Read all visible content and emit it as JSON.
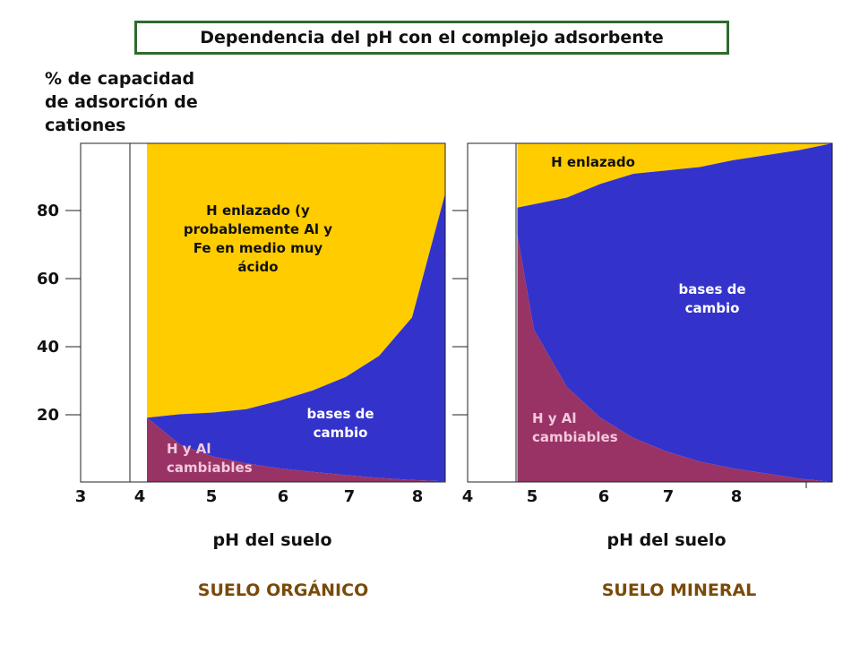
{
  "title": "Dependencia del pH con el complejo adsorbente",
  "y_axis_label": "% de capacidad\nde adsorción de\ncationes",
  "colors": {
    "h_enlazado": "#ffcc00",
    "bases_de_cambio": "#3333cc",
    "h_y_al": "#993366",
    "title_border": "#2e6b2e",
    "footer_text": "#7a4a0a"
  },
  "chart_data": [
    {
      "type": "area",
      "title": "SUELO ORGÁNICO",
      "xlabel": "pH del suelo",
      "ylabel": "% de capacidad de adsorción de cationes",
      "x_ticks": [
        "3",
        "4",
        "5",
        "6",
        "7",
        "8"
      ],
      "y_ticks": [
        "20",
        "40",
        "60",
        "80"
      ],
      "xlim": [
        3,
        8.5
      ],
      "ylim": [
        0,
        100
      ],
      "series": [
        {
          "name": "H y Al cambiables",
          "color_key": "h_y_al",
          "x": [
            4,
            4.5,
            5,
            5.5,
            6,
            6.5,
            7,
            7.5,
            8,
            8.5
          ],
          "y": [
            19,
            11,
            7.5,
            5.5,
            4,
            3,
            2,
            1.2,
            0.6,
            0.2
          ]
        },
        {
          "name": "bases de cambio",
          "color_key": "bases_de_cambio",
          "x": [
            4,
            4.5,
            5,
            5.5,
            6,
            6.5,
            7,
            7.5,
            8,
            8.5
          ],
          "y": [
            0,
            9,
            13,
            16,
            20,
            24,
            29,
            36,
            48,
            85
          ]
        },
        {
          "name": "H enlazado (y probablemente Al y Fe en medio muy ácido",
          "color_key": "h_enlazado",
          "x": [
            4,
            4.5,
            5,
            5.5,
            6,
            6.5,
            7,
            7.5,
            8,
            8.5
          ],
          "y": [
            81,
            80,
            79.5,
            78.5,
            76,
            72.5,
            68,
            62.5,
            51.4,
            14.8
          ]
        }
      ],
      "region_labels": [
        {
          "text": "H enlazado (y\nprobablemente Al y\nFe en medio muy\nácido",
          "color_key": "h_enlazado"
        },
        {
          "text": "bases de\ncambio",
          "color_key": "bases_de_cambio"
        },
        {
          "text": "H y Al\ncambiables",
          "color_key": "h_y_al"
        }
      ],
      "footer": "SUELO ORGÁNICO"
    },
    {
      "type": "area",
      "title": "SUELO MINERAL",
      "xlabel": "pH del suelo",
      "x_ticks": [
        "4",
        "5",
        "6",
        "7",
        "8"
      ],
      "y_ticks": [
        "20",
        "40",
        "60",
        "80"
      ],
      "xlim": [
        4,
        9.5
      ],
      "ylim": [
        0,
        100
      ],
      "series": [
        {
          "name": "H y Al cambiables",
          "color_key": "h_y_al",
          "x": [
            4.75,
            5,
            5.5,
            6,
            6.5,
            7,
            7.5,
            8,
            8.5,
            9,
            9.5
          ],
          "y": [
            73,
            45,
            28,
            19,
            13,
            9,
            6,
            4,
            2.5,
            1,
            0
          ]
        },
        {
          "name": "bases de cambio",
          "color_key": "bases_de_cambio",
          "x": [
            4.75,
            5,
            5.5,
            6,
            6.5,
            7,
            7.5,
            8,
            8.5,
            9,
            9.5
          ],
          "y": [
            8,
            37,
            56,
            69,
            78,
            83,
            87,
            91,
            94,
            97,
            100
          ]
        },
        {
          "name": "H enlazado",
          "color_key": "h_enlazado",
          "x": [
            4.75,
            5,
            5.5,
            6,
            6.5,
            7,
            7.5,
            8,
            8.5,
            9,
            9.5
          ],
          "y": [
            19,
            18,
            16,
            12,
            9,
            8,
            7,
            5,
            3.5,
            2,
            0
          ]
        }
      ],
      "region_labels": [
        {
          "text": "H enlazado",
          "color_key": "h_enlazado"
        },
        {
          "text": "bases de\ncambio",
          "color_key": "bases_de_cambio"
        },
        {
          "text": "H y Al\ncambiables",
          "color_key": "h_y_al"
        }
      ],
      "footer": "SUELO MINERAL"
    }
  ]
}
